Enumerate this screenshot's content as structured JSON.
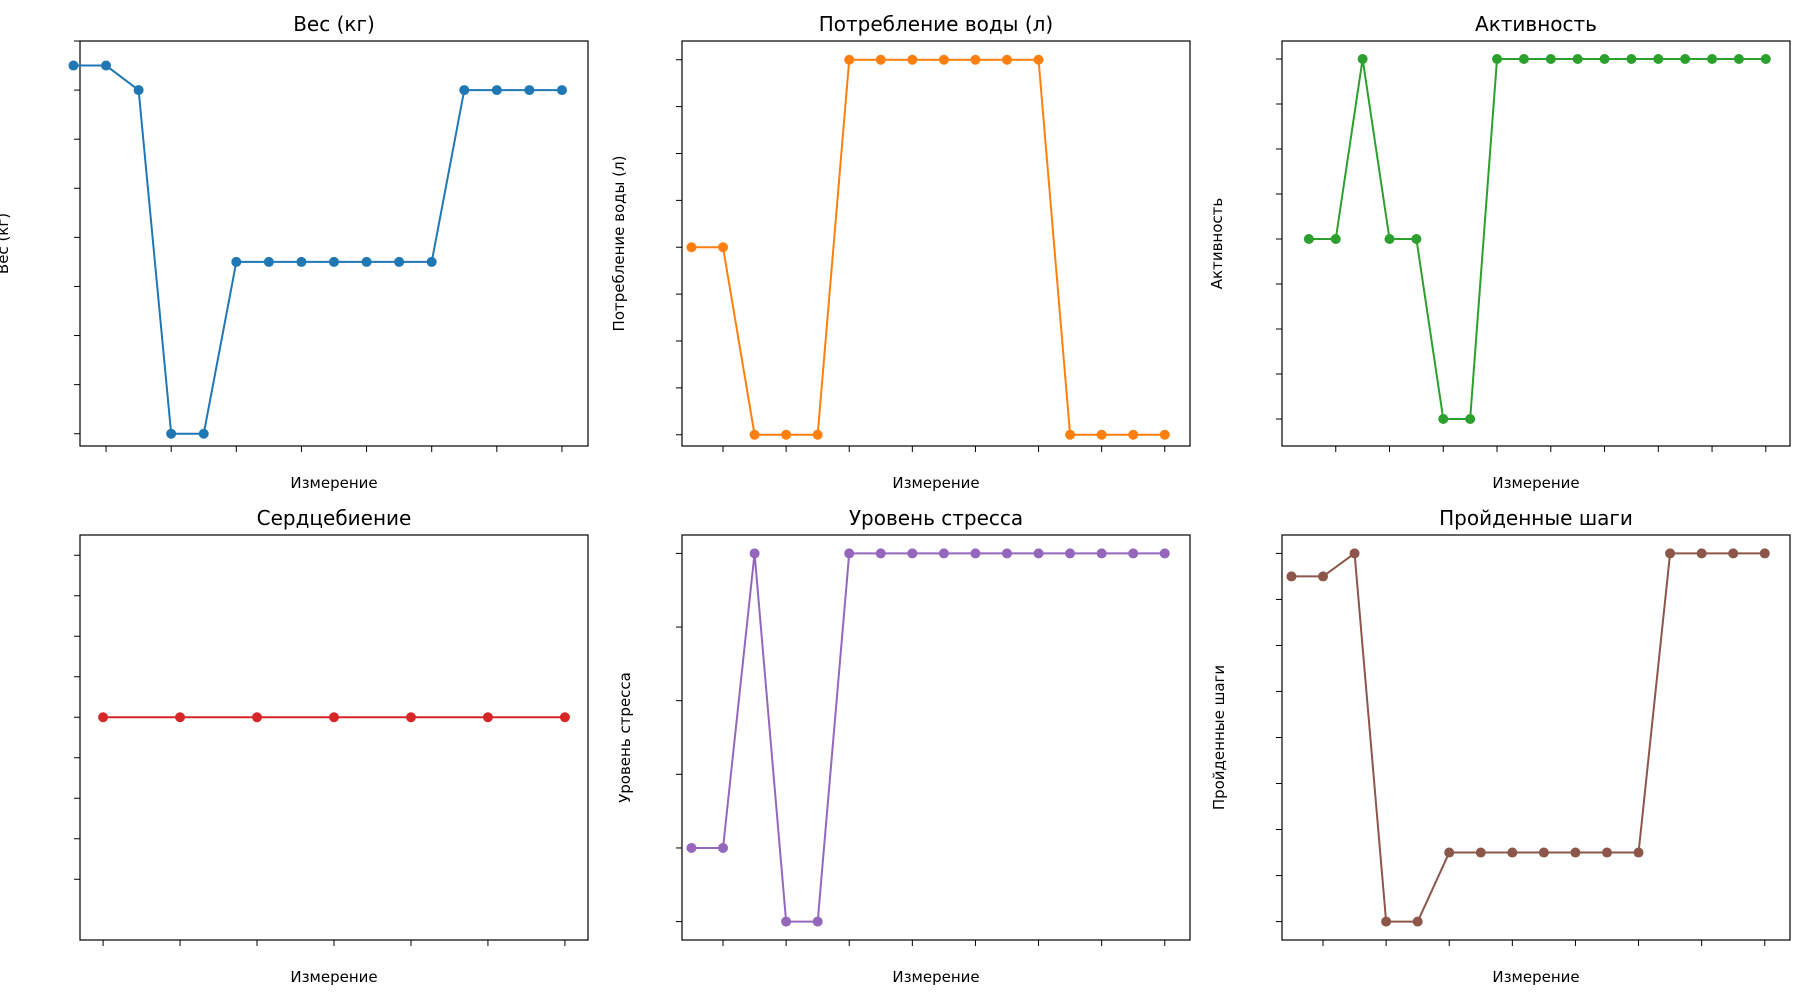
{
  "chart_data": [
    {
      "type": "line",
      "title": "Вес (кг)",
      "xlabel": "Измерение",
      "ylabel": "Вес (кг)",
      "color": "#1f77b4",
      "x": [
        1,
        2,
        3,
        4,
        5,
        6,
        7,
        8,
        9,
        10,
        11,
        12,
        13,
        14,
        15,
        16
      ],
      "values": [
        72,
        72,
        71.5,
        64.5,
        64.5,
        68,
        68,
        68,
        68,
        68,
        68,
        68,
        71.5,
        71.5,
        71.5,
        71.5
      ],
      "ylim": [
        64.25,
        72.5
      ],
      "y_ticks": [
        64.5,
        65.5,
        66.5,
        67.5,
        68.5,
        69.5,
        70.5,
        71.5,
        72.5
      ],
      "x_ticks": [
        2,
        4,
        6,
        8,
        10,
        12,
        14,
        16
      ],
      "xlim": [
        1.2,
        16.8
      ],
      "grid": false,
      "tick_labels_shown": false
    },
    {
      "type": "line",
      "title": "Потребление воды (л)",
      "xlabel": "Измерение",
      "ylabel": "Потребление воды (л)",
      "color": "#ff7f0e",
      "x": [
        1,
        2,
        3,
        4,
        5,
        6,
        7,
        8,
        9,
        10,
        11,
        12,
        13,
        14,
        15,
        16
      ],
      "values": [
        2.0,
        2.0,
        1.5,
        1.5,
        1.5,
        2.5,
        2.5,
        2.5,
        2.5,
        2.5,
        2.5,
        2.5,
        1.5,
        1.5,
        1.5,
        1.5
      ],
      "ylim": [
        1.47,
        2.55
      ],
      "y_ticks": [
        1.5,
        1.625,
        1.75,
        1.875,
        2.0,
        2.125,
        2.25,
        2.375,
        2.5
      ],
      "x_ticks": [
        2,
        4,
        6,
        8,
        10,
        12,
        14,
        16
      ],
      "xlim": [
        0.7,
        16.8
      ],
      "grid": false,
      "tick_labels_shown": false
    },
    {
      "type": "line",
      "title": "Активность",
      "xlabel": "Измерение",
      "ylabel": "Активность",
      "color": "#2ca02c",
      "x": [
        1,
        2,
        3,
        4,
        5,
        6,
        7,
        8,
        9,
        10,
        11,
        12,
        13,
        14,
        15,
        16,
        17,
        18
      ],
      "values": [
        2,
        2,
        4,
        2,
        2,
        0,
        0,
        4,
        4,
        4,
        4,
        4,
        4,
        4,
        4,
        4,
        4,
        4
      ],
      "ylim": [
        -0.3,
        4.2
      ],
      "y_ticks": [
        0,
        0.5,
        1,
        1.5,
        2,
        2.5,
        3,
        3.5,
        4
      ],
      "x_ticks": [
        2,
        4,
        6,
        8,
        10,
        12,
        14,
        16,
        18
      ],
      "xlim": [
        0.0,
        18.9
      ],
      "grid": false,
      "tick_labels_shown": false
    },
    {
      "type": "line",
      "title": "Сердцебиение",
      "xlabel": "Измерение",
      "ylabel": "Сердцебиение",
      "color": "#d62728",
      "x": [
        1,
        2,
        3,
        4,
        5,
        6,
        7
      ],
      "values": [
        72,
        72,
        72,
        72,
        72,
        72,
        72
      ],
      "ylim": [
        71.945,
        72.045
      ],
      "y_ticks": [
        71.96,
        71.97,
        71.98,
        71.99,
        72.0,
        72.01,
        72.02,
        72.03,
        72.04
      ],
      "x_ticks": [
        1,
        2,
        3,
        4,
        5,
        6,
        7
      ],
      "xlim": [
        0.7,
        7.3
      ],
      "grid": false,
      "tick_labels_shown": false
    },
    {
      "type": "line",
      "title": "Уровень стресса",
      "xlabel": "Измерение",
      "ylabel": "Уровень стресса",
      "color": "#9467bd",
      "x": [
        1,
        2,
        3,
        4,
        5,
        6,
        7,
        8,
        9,
        10,
        11,
        12,
        13,
        14,
        15,
        16
      ],
      "values": [
        1,
        1,
        5,
        0,
        0,
        5,
        5,
        5,
        5,
        5,
        5,
        5,
        5,
        5,
        5,
        5
      ],
      "ylim": [
        -0.25,
        5.25
      ],
      "y_ticks": [
        0,
        1,
        2,
        3,
        4,
        5
      ],
      "x_ticks": [
        2,
        4,
        6,
        8,
        10,
        12,
        14,
        16
      ],
      "xlim": [
        0.7,
        16.8
      ],
      "grid": false,
      "tick_labels_shown": false
    },
    {
      "type": "line",
      "title": "Пройденные шаги",
      "xlabel": "Измерение",
      "ylabel": "Пройденные шаги",
      "color": "#8c564b",
      "x": [
        1,
        2,
        3,
        4,
        5,
        6,
        7,
        8,
        9,
        10,
        11,
        12,
        13,
        14,
        15,
        16
      ],
      "values": [
        9500,
        9500,
        10000,
        2000,
        2000,
        3500,
        3500,
        3500,
        3500,
        3500,
        3500,
        3500,
        10000,
        10000,
        10000,
        10000
      ],
      "ylim": [
        1600,
        10400
      ],
      "y_ticks": [
        2000,
        3000,
        4000,
        5000,
        6000,
        7000,
        8000,
        9000,
        10000
      ],
      "x_ticks": [
        2,
        4,
        6,
        8,
        10,
        12,
        14,
        16
      ],
      "xlim": [
        0.7,
        16.8
      ],
      "grid": false,
      "tick_labels_shown": false
    }
  ]
}
